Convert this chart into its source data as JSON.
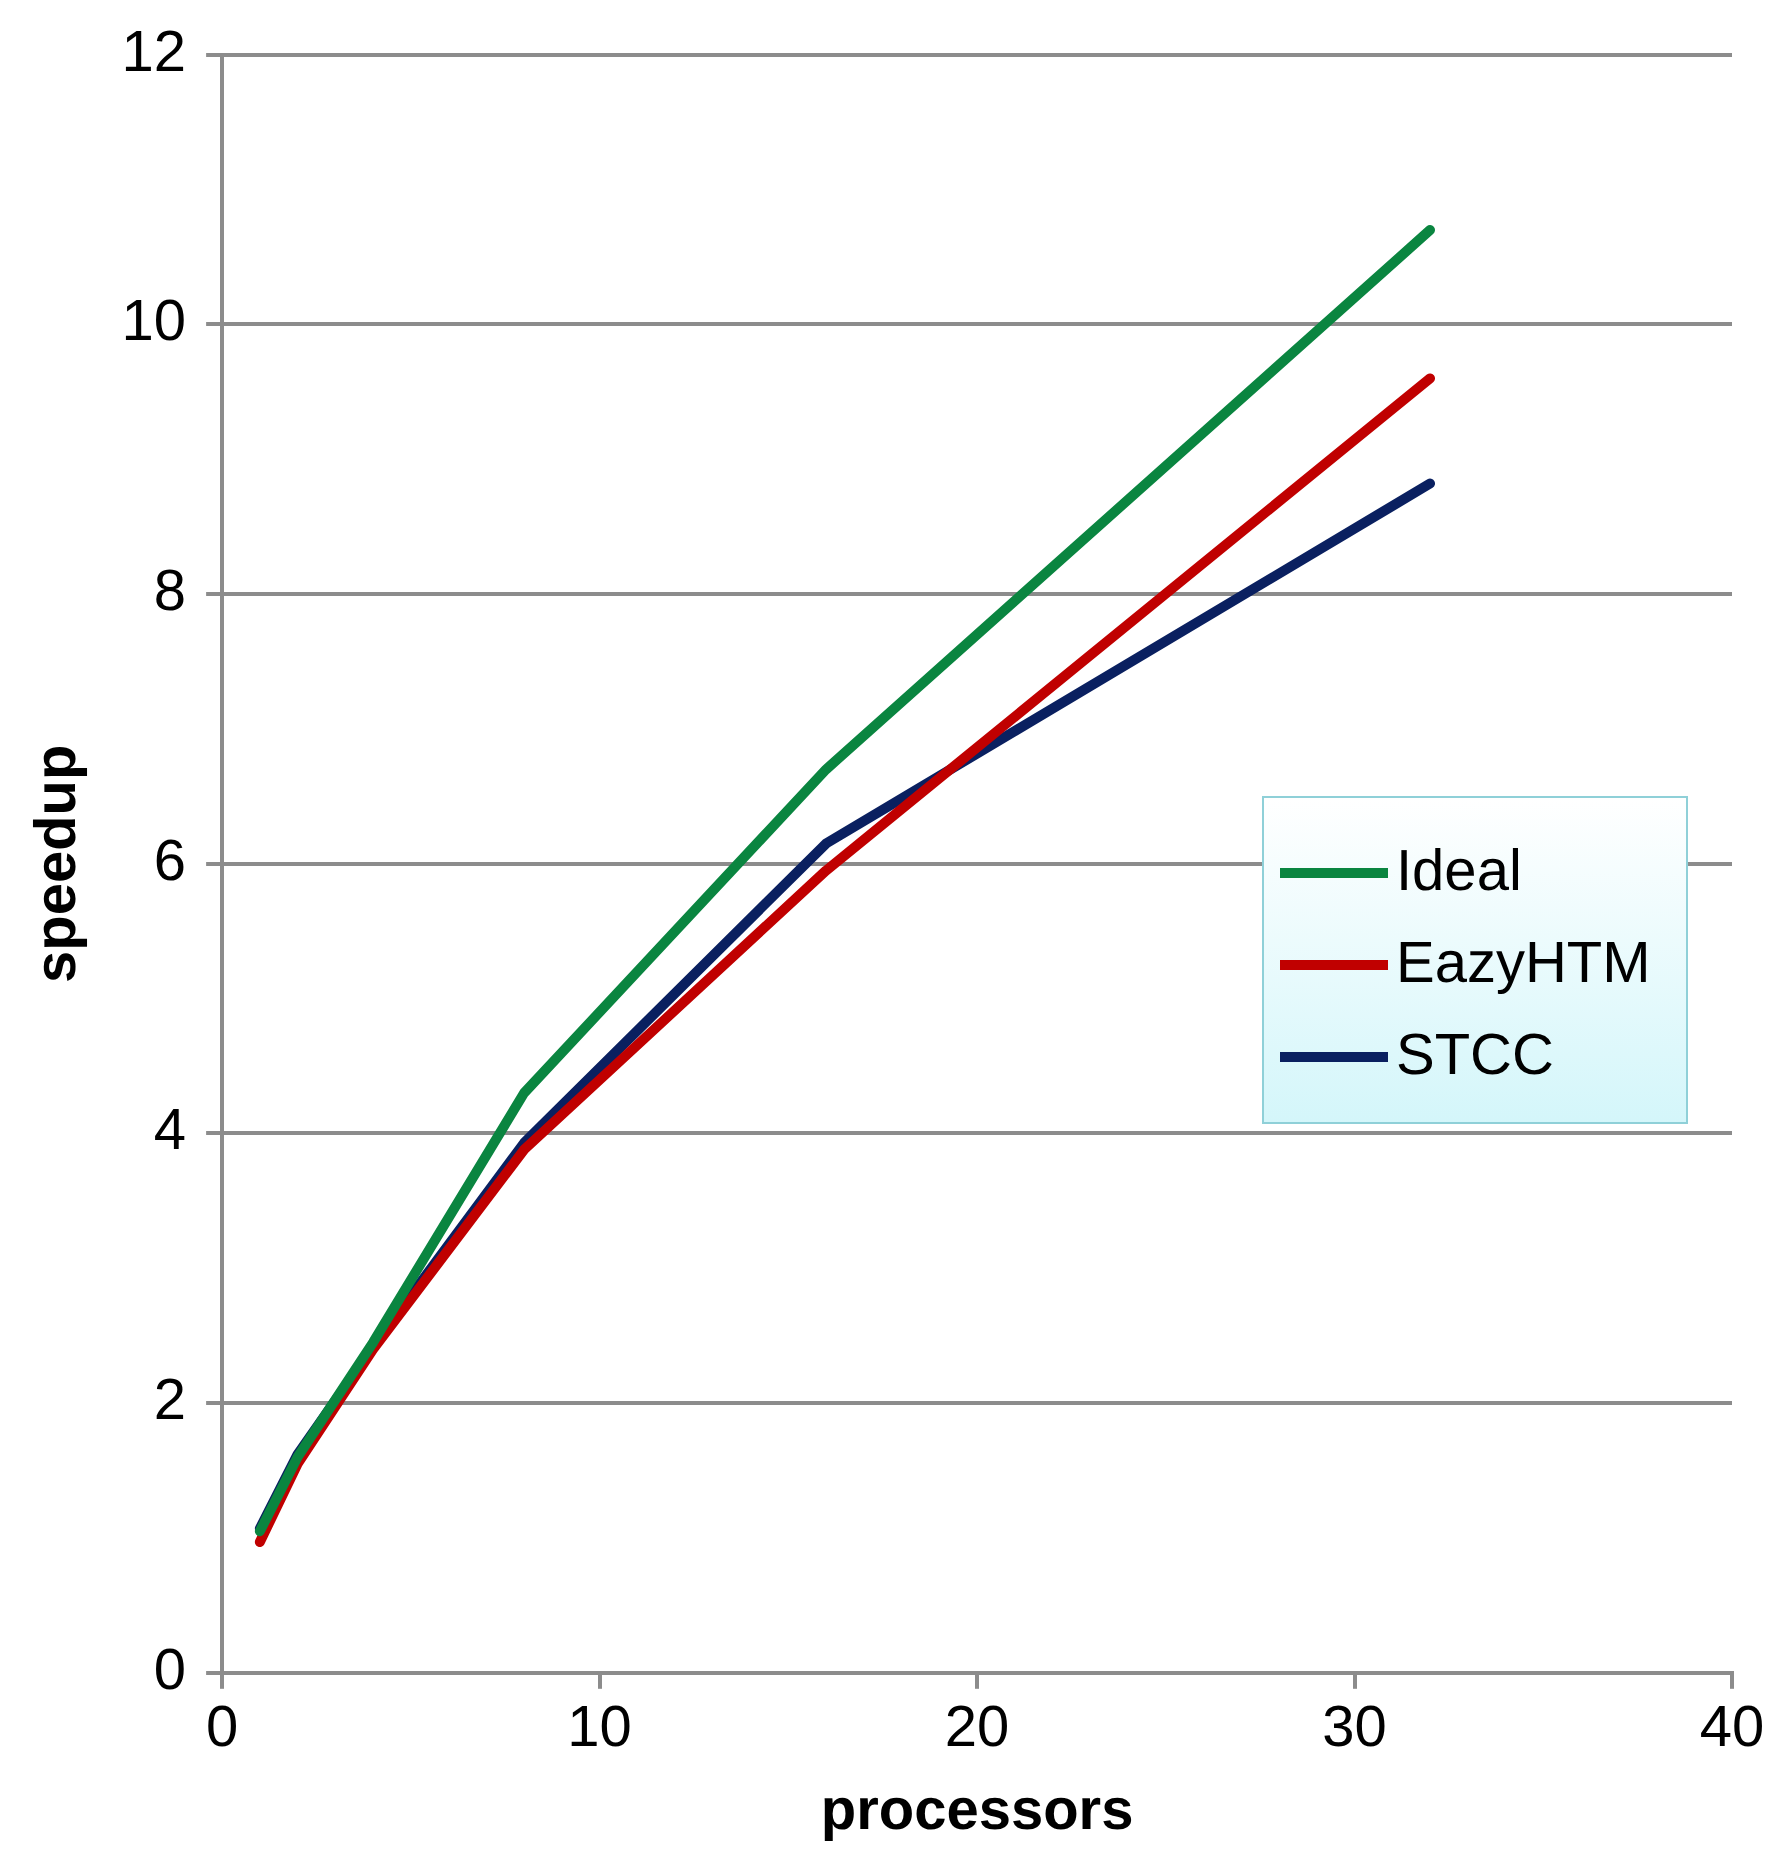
{
  "chart_data": {
    "type": "line",
    "xlabel": "processors",
    "ylabel": "speedup",
    "x": [
      1,
      2,
      4,
      8,
      16,
      32
    ],
    "series": [
      {
        "name": "Ideal",
        "color": "#0a8540",
        "values": [
          1.05,
          1.6,
          2.45,
          4.3,
          6.7,
          10.7
        ]
      },
      {
        "name": "EazyHTM",
        "color": "#c00000",
        "values": [
          0.97,
          1.55,
          2.4,
          3.88,
          5.95,
          9.6
        ]
      },
      {
        "name": "STCC",
        "color": "#0a2060",
        "values": [
          1.07,
          1.62,
          2.42,
          3.93,
          6.15,
          8.82
        ]
      }
    ],
    "xlim": [
      0,
      40
    ],
    "xticks": [
      0,
      10,
      20,
      30,
      40
    ],
    "ylim": [
      0,
      12
    ],
    "yticks": [
      0,
      2,
      4,
      6,
      8,
      10,
      12
    ],
    "grid": "y",
    "legend": "right",
    "marker": "none",
    "line_style": "solid"
  }
}
